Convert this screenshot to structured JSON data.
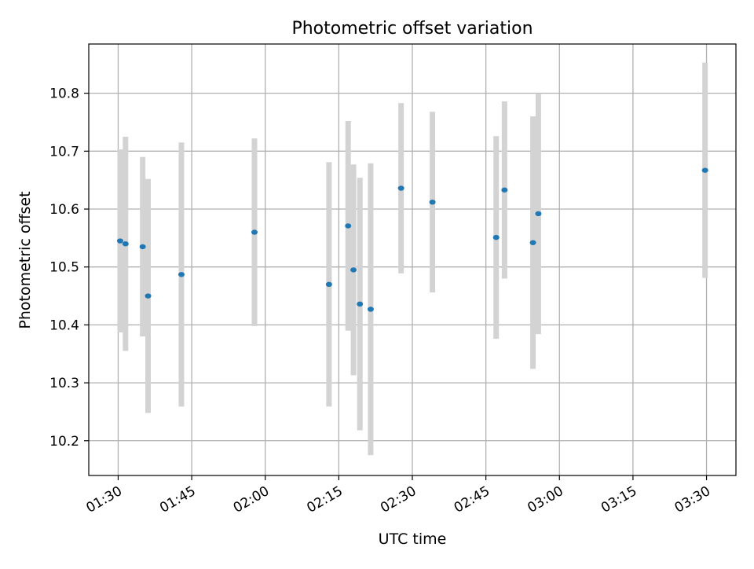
{
  "chart_data": {
    "type": "scatter",
    "title": "Photometric offset variation",
    "xlabel": "UTC time",
    "ylabel": "Photometric offset",
    "x_ticks": [
      "01:30",
      "01:45",
      "02:00",
      "02:15",
      "02:30",
      "02:45",
      "03:00",
      "03:15",
      "03:30"
    ],
    "y_ticks": [
      "10.2",
      "10.3",
      "10.4",
      "10.5",
      "10.6",
      "10.7",
      "10.8"
    ],
    "xlim": [
      "01:24",
      "03:36"
    ],
    "ylim": [
      10.14,
      10.885
    ],
    "grid": true,
    "colors": {
      "point": "#1f77b4",
      "errorbar": "#d3d3d3",
      "grid": "#b0b0b0"
    },
    "points": [
      {
        "x": "01:30:24",
        "y": 10.545,
        "err": 0.158
      },
      {
        "x": "01:31:30",
        "y": 10.54,
        "err": 0.185
      },
      {
        "x": "01:35:00",
        "y": 10.535,
        "err": 0.155
      },
      {
        "x": "01:36:06",
        "y": 10.45,
        "err": 0.202
      },
      {
        "x": "01:42:54",
        "y": 10.487,
        "err": 0.228
      },
      {
        "x": "01:57:48",
        "y": 10.56,
        "err": 0.162
      },
      {
        "x": "02:13:00",
        "y": 10.47,
        "err": 0.211
      },
      {
        "x": "02:16:54",
        "y": 10.571,
        "err": 0.181
      },
      {
        "x": "02:18:00",
        "y": 10.495,
        "err": 0.182
      },
      {
        "x": "02:19:18",
        "y": 10.436,
        "err": 0.218
      },
      {
        "x": "02:21:30",
        "y": 10.427,
        "err": 0.252
      },
      {
        "x": "02:27:42",
        "y": 10.636,
        "err": 0.147
      },
      {
        "x": "02:34:06",
        "y": 10.612,
        "err": 0.156
      },
      {
        "x": "02:47:06",
        "y": 10.551,
        "err": 0.175
      },
      {
        "x": "02:48:48",
        "y": 10.633,
        "err": 0.153
      },
      {
        "x": "02:54:36",
        "y": 10.542,
        "err": 0.218
      },
      {
        "x": "02:55:42",
        "y": 10.592,
        "err": 0.208
      },
      {
        "x": "03:29:42",
        "y": 10.667,
        "err": 0.186
      }
    ]
  }
}
